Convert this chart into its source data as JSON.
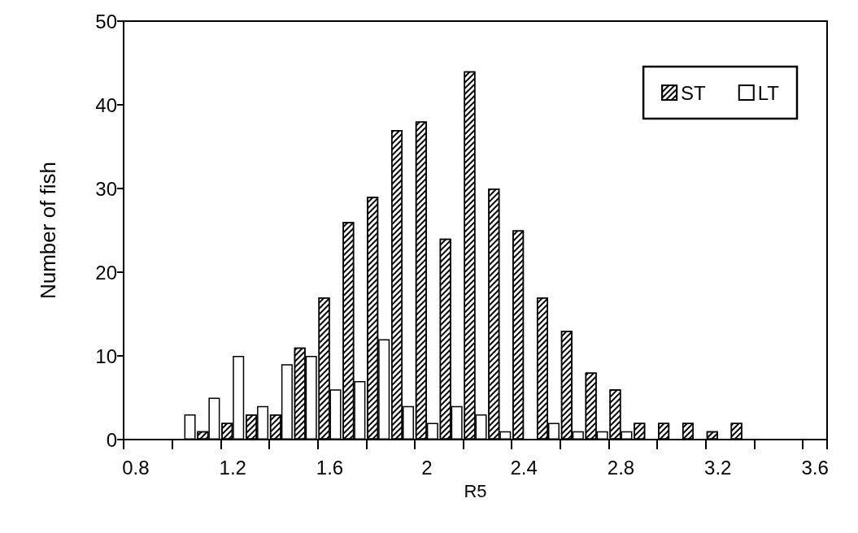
{
  "chart_data": {
    "type": "bar",
    "xlabel": "R5",
    "ylabel": "Number of fish",
    "categories": [
      "0.8",
      null,
      null,
      null,
      "1.2",
      null,
      null,
      null,
      "1.6",
      null,
      null,
      null,
      "2",
      null,
      null,
      null,
      "2.4",
      null,
      null,
      null,
      "2.8",
      null,
      null,
      null,
      "3.2",
      null,
      null,
      null,
      "3.6"
    ],
    "series": [
      {
        "name": "ST",
        "color": "#000000",
        "values": [
          0,
          0,
          0,
          1,
          2,
          3,
          3,
          11,
          17,
          26,
          29,
          37,
          38,
          24,
          44,
          30,
          25,
          17,
          13,
          8,
          6,
          2,
          2,
          2,
          1,
          2,
          0,
          0,
          0
        ]
      },
      {
        "name": "LT",
        "color": "#ffffff",
        "values": [
          0,
          0,
          3,
          5,
          10,
          4,
          9,
          10,
          6,
          7,
          12,
          4,
          2,
          4,
          3,
          1,
          0,
          2,
          1,
          1,
          1,
          0,
          0,
          0,
          0,
          0,
          0,
          0,
          0
        ]
      }
    ],
    "ylim": [
      0,
      50
    ],
    "yticks": [
      0,
      10,
      20,
      30,
      40,
      50
    ],
    "grid": false,
    "legend": "top right"
  }
}
